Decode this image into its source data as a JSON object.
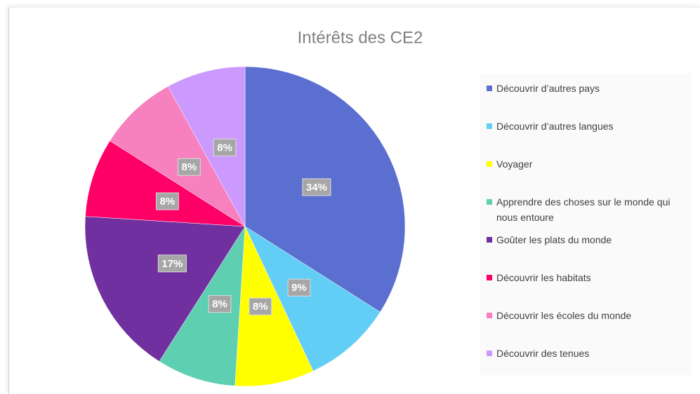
{
  "chart_data": {
    "type": "pie",
    "title": "Intérêts des CE2",
    "categories": [
      "Découvrir d’autres pays",
      "Découvrir d’autres langues",
      "Voyager",
      "Apprendre des choses sur le monde qui nous entoure",
      "Goûter les plats du monde",
      "Découvrir les habitats",
      "Découvrir les écoles du monde",
      "Découvrir des tenues"
    ],
    "values": [
      34,
      9,
      8,
      8,
      17,
      8,
      8,
      8
    ],
    "value_labels": [
      "34%",
      "9%",
      "8%",
      "8%",
      "17%",
      "8%",
      "8%",
      "8%"
    ],
    "colors": [
      "#5a6fd0",
      "#62cdf5",
      "#ffff00",
      "#5ecfb1",
      "#7030a0",
      "#ff0066",
      "#f780be",
      "#cc99ff"
    ],
    "legend": "right"
  }
}
